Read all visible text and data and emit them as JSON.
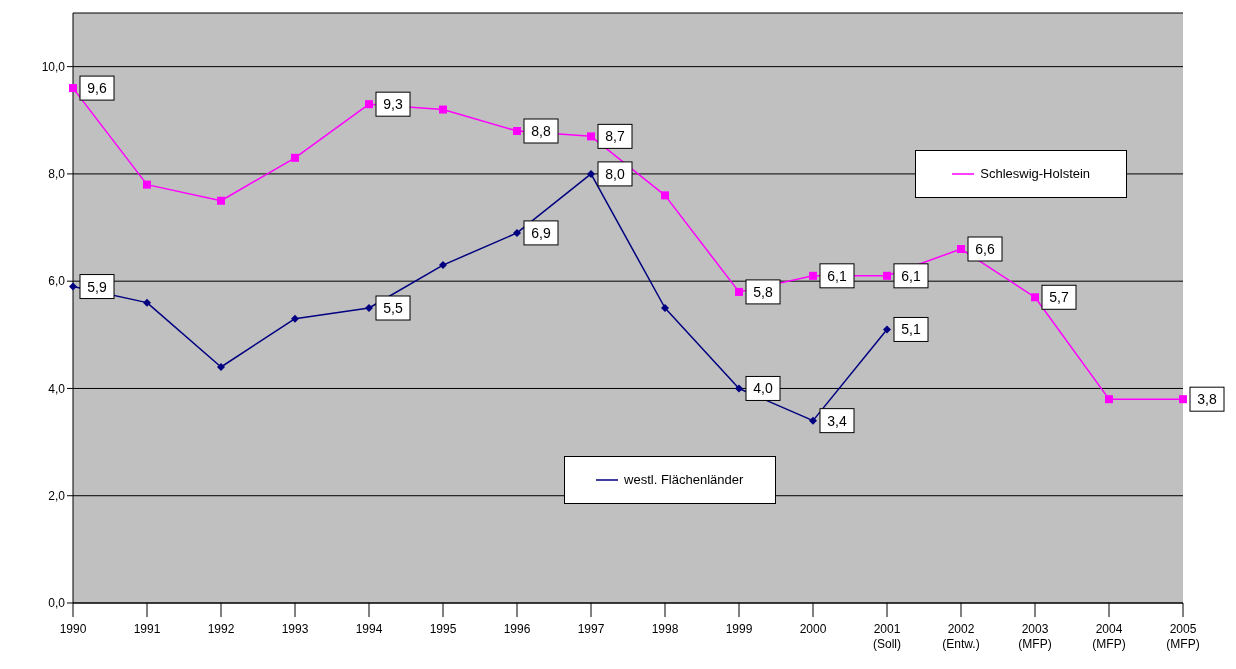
{
  "chart_data": {
    "type": "line",
    "categories": [
      "1990",
      "1991",
      "1992",
      "1993",
      "1994",
      "1995",
      "1996",
      "1997",
      "1998",
      "1999",
      "2000",
      "2001 (Soll)",
      "2002 (Entw.)",
      "2003 (MFP)",
      "2004 (MFP)",
      "2005 (MFP)"
    ],
    "series": [
      {
        "name": "Schleswig-Holstein",
        "color": "#ff00ff",
        "marker": "square",
        "values": [
          9.6,
          7.8,
          7.5,
          8.3,
          9.3,
          9.2,
          8.8,
          8.7,
          7.6,
          5.8,
          6.1,
          6.1,
          6.6,
          5.7,
          3.8,
          3.8
        ],
        "value_labels": [
          "9,6",
          null,
          null,
          null,
          "9,3",
          null,
          "8,8",
          "8,7",
          null,
          "5,8",
          "6,1",
          "6,1",
          "6,6",
          "5,7",
          null,
          "3,8"
        ]
      },
      {
        "name": "westl. Flächenländer",
        "color": "#000080",
        "marker": "diamond",
        "values": [
          5.9,
          5.6,
          4.4,
          5.3,
          5.5,
          6.3,
          6.9,
          8.0,
          5.5,
          4.0,
          3.4,
          5.1,
          null,
          null,
          null,
          null
        ],
        "value_labels": [
          "5,9",
          null,
          null,
          null,
          "5,5",
          null,
          "6,9",
          "8,0",
          null,
          "4,0",
          "3,4",
          "5,1",
          null,
          null,
          null,
          null
        ]
      }
    ],
    "ylim": [
      0,
      11
    ],
    "yticks": [
      {
        "value": 0,
        "label": "0,0"
      },
      {
        "value": 2,
        "label": "2,0"
      },
      {
        "value": 4,
        "label": "4,0"
      },
      {
        "value": 6,
        "label": "6,0"
      },
      {
        "value": 8,
        "label": "8,0"
      },
      {
        "value": 10,
        "label": "10,0"
      }
    ],
    "grid": "y",
    "legend": "right",
    "line_style": "solid"
  }
}
